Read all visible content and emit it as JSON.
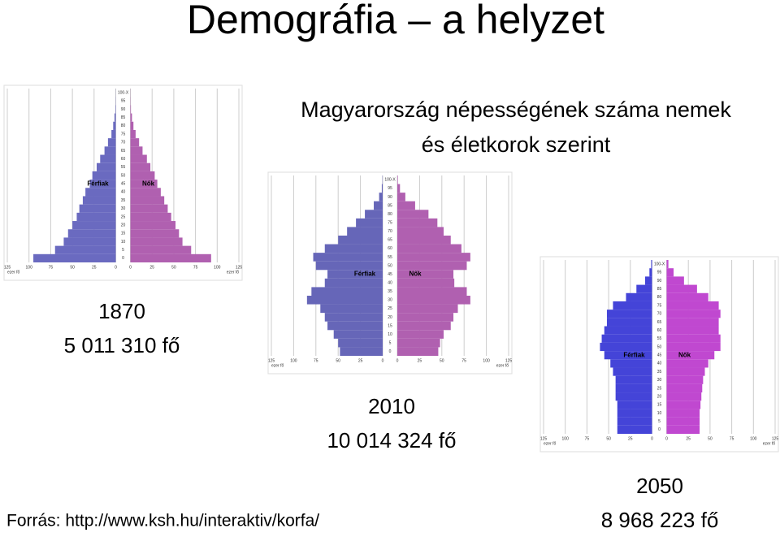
{
  "title": "Demográfia – a helyzet",
  "subtitle": [
    "Magyarország népességének száma nemek",
    "és életkorok szerint"
  ],
  "source": "Forrás: http://www.ksh.hu/interaktiv/korfa/",
  "chart_data": [
    {
      "type": "pyramid",
      "year": "1870",
      "population": "5 011 310 fő",
      "x_unit": "ezer fő",
      "categories": [
        "0",
        "5",
        "10",
        "15",
        "20",
        "25",
        "30",
        "35",
        "40",
        "45",
        "50",
        "55",
        "60",
        "65",
        "70",
        "75",
        "80",
        "85",
        "90",
        "95",
        "100-X"
      ],
      "xlim": [
        0,
        125
      ],
      "xticks": [
        0,
        25,
        50,
        75,
        100,
        125
      ],
      "grid": true,
      "series": [
        {
          "name": "Férfiak",
          "color": "#6a6ac0",
          "values": [
            95,
            70,
            60,
            55,
            50,
            45,
            42,
            38,
            35,
            30,
            27,
            22,
            18,
            13,
            9,
            5,
            3,
            1.5,
            0.5,
            0.2,
            0.1
          ]
        },
        {
          "name": "Nők",
          "color": "#b060b0",
          "values": [
            93,
            70,
            60,
            56,
            52,
            47,
            43,
            39,
            35,
            31,
            28,
            23,
            19,
            14,
            10,
            6,
            3.5,
            1.8,
            0.6,
            0.2,
            0.1
          ]
        }
      ]
    },
    {
      "type": "pyramid",
      "year": "2010",
      "population": "10 014 324 fő",
      "x_unit": "ezer fő",
      "categories": [
        "0",
        "5",
        "10",
        "15",
        "20",
        "25",
        "30",
        "35",
        "40",
        "45",
        "50",
        "55",
        "60",
        "65",
        "70",
        "75",
        "80",
        "85",
        "90",
        "95",
        "100-X"
      ],
      "xlim": [
        0,
        125
      ],
      "xticks": [
        0,
        25,
        50,
        75,
        100,
        125
      ],
      "grid": true,
      "series": [
        {
          "name": "Férfiak",
          "color": "#6666b8",
          "values": [
            48,
            50,
            55,
            62,
            65,
            70,
            85,
            80,
            65,
            62,
            75,
            78,
            65,
            50,
            40,
            30,
            20,
            10,
            4,
            1,
            0.3
          ]
        },
        {
          "name": "Nők",
          "color": "#b060b0",
          "values": [
            46,
            48,
            52,
            60,
            63,
            68,
            82,
            78,
            64,
            63,
            78,
            82,
            72,
            60,
            52,
            45,
            35,
            20,
            9,
            3,
            0.6
          ]
        }
      ]
    },
    {
      "type": "pyramid",
      "year": "2050",
      "population": "8 968 223 fő",
      "x_unit": "ezer fő",
      "categories": [
        "0",
        "5",
        "10",
        "15",
        "20",
        "25",
        "30",
        "35",
        "40",
        "45",
        "50",
        "55",
        "60",
        "65",
        "70",
        "75",
        "80",
        "85",
        "90",
        "95",
        "100-X"
      ],
      "xlim": [
        0,
        125
      ],
      "xticks": [
        0,
        25,
        50,
        75,
        100,
        125
      ],
      "grid": true,
      "series": [
        {
          "name": "Férfiak",
          "color": "#4444d8",
          "values": [
            40,
            40,
            40,
            40,
            42,
            42,
            42,
            45,
            48,
            55,
            60,
            58,
            55,
            52,
            52,
            45,
            30,
            18,
            8,
            3,
            1
          ]
        },
        {
          "name": "Nők",
          "color": "#c048d0",
          "values": [
            38,
            38,
            38,
            39,
            40,
            41,
            42,
            44,
            48,
            55,
            62,
            62,
            60,
            60,
            62,
            60,
            48,
            35,
            20,
            8,
            2
          ]
        }
      ]
    }
  ]
}
